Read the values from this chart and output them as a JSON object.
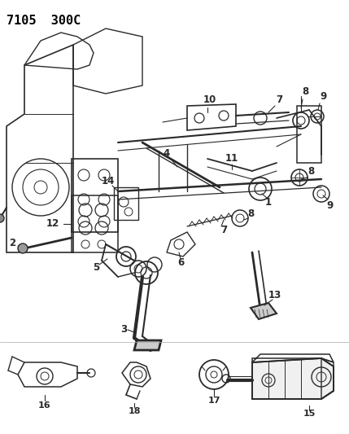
{
  "title": "7105  300C",
  "bg_color": "#ffffff",
  "line_color": "#2a2a2a",
  "label_color": "#000000",
  "fig_width": 4.29,
  "fig_height": 5.33,
  "dpi": 100
}
